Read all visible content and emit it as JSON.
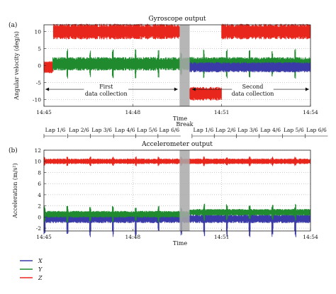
{
  "chart_data": [
    {
      "panel_label": "(a)",
      "type": "line",
      "title": "Gyroscope output",
      "xlabel": "Time",
      "ylabel": "Angular velocity (deg/s)",
      "xticks": [
        "14:45",
        "14:48",
        "14:51",
        "14:54"
      ],
      "xlim_minutes": [
        0,
        9
      ],
      "yticks": [
        10,
        5,
        0,
        -5,
        -10
      ],
      "ylim": [
        -12,
        12
      ],
      "grid": "dotted",
      "break_window_minutes": [
        4.58,
        4.92
      ],
      "break_label": "Break",
      "annotations": {
        "first": [
          "First",
          "data collection"
        ],
        "second": [
          "Second",
          "data collection"
        ]
      },
      "series": [
        {
          "name": "Z",
          "color": "#e8261c",
          "segments": [
            {
              "x": [
                0.0,
                0.32
              ],
              "center": -0.5,
              "half_width": 1.8
            },
            {
              "x": [
                0.32,
                4.58
              ],
              "center": 10.0,
              "half_width": 2.3
            },
            {
              "x": [
                4.92,
                6.0
              ],
              "center": -8.3,
              "half_width": 2.0
            },
            {
              "x": [
                6.0,
                9.0
              ],
              "center": 10.0,
              "half_width": 2.3
            }
          ]
        },
        {
          "name": "Y",
          "color": "#1f8a2e",
          "segments": [
            {
              "x": [
                0.3,
                9.0
              ],
              "center": 0.5,
              "half_width": 2.0
            }
          ]
        },
        {
          "name": "X",
          "color": "#3a3aa8",
          "segments": [
            {
              "x": [
                4.92,
                9.0
              ],
              "center": -0.5,
              "half_width": 1.5
            }
          ]
        }
      ]
    },
    {
      "panel_label": "(b)",
      "type": "line",
      "title": "Accelerometer output",
      "xlabel": "Time",
      "ylabel": "Acceleration (m/s²)",
      "xticks": [
        "14:45",
        "14:48",
        "14:51",
        "14:54"
      ],
      "xlim_minutes": [
        0,
        9
      ],
      "yticks": [
        12,
        10,
        8,
        6,
        4,
        2,
        0,
        -2
      ],
      "ylim": [
        -2.5,
        12
      ],
      "grid": "dotted",
      "break_window_minutes": [
        4.58,
        4.92
      ],
      "lap_labels": [
        "Lap 1/6",
        "Lap 2/6",
        "Lap 3/6",
        "Lap 4/6",
        "Lap 5/6",
        "Lap 6/6",
        "Lap 1/6",
        "Lap 2/6",
        "Lap 3/6",
        "Lap 4/6",
        "Lap 5/6",
        "Lap 6/6"
      ],
      "lap_positions_minutes": [
        0.0,
        0.8,
        1.57,
        2.35,
        3.1,
        3.85,
        5.0,
        5.75,
        6.5,
        7.27,
        8.05,
        8.82
      ],
      "series": [
        {
          "name": "Z",
          "color": "#e8261c",
          "center": 10.0,
          "half_width": 0.5
        },
        {
          "name": "Y",
          "color": "#1f8a2e",
          "center": 0.5,
          "half_width": 0.6
        },
        {
          "name": "X",
          "color": "#3a3aa8",
          "center": -0.3,
          "half_width": 0.8
        }
      ]
    }
  ],
  "legend": [
    {
      "label": "X",
      "color": "#3a3aa8"
    },
    {
      "label": "Y",
      "color": "#1f8a2e"
    },
    {
      "label": "Z",
      "color": "#e8261c"
    }
  ]
}
